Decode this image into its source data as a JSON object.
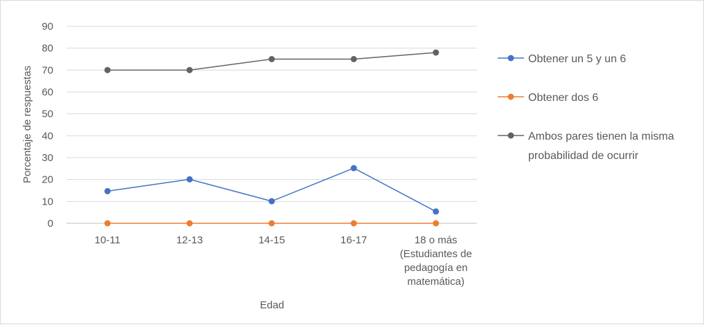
{
  "chart_data": {
    "type": "line",
    "title": "",
    "xlabel": "Edad",
    "ylabel": "Porcentaje de respuestas",
    "ylim": [
      0,
      90
    ],
    "yticks": [
      0,
      10,
      20,
      30,
      40,
      50,
      60,
      70,
      80,
      90
    ],
    "grid": true,
    "legend_position": "right",
    "categories": [
      [
        "10-11"
      ],
      [
        "12-13"
      ],
      [
        "14-15"
      ],
      [
        "16-17"
      ],
      [
        "18 o más",
        "(Estudiantes de",
        "pedagogía en",
        "matemática)"
      ]
    ],
    "series": [
      {
        "name": "Obtener un 5 y un 6",
        "color": "#4472c4",
        "values": [
          14.7,
          20.1,
          10.1,
          25.2,
          5.4
        ]
      },
      {
        "name": "Obtener dos 6",
        "color": "#ed7d31",
        "values": [
          0,
          0,
          0,
          0,
          0
        ]
      },
      {
        "name": "Ambos pares tienen la misma probabilidad de ocurrir",
        "color": "#636363",
        "values": [
          70,
          70,
          75,
          75,
          78
        ],
        "legend_lines": [
          "Ambos pares tienen la misma",
          "probabilidad de ocurrir"
        ]
      }
    ]
  }
}
